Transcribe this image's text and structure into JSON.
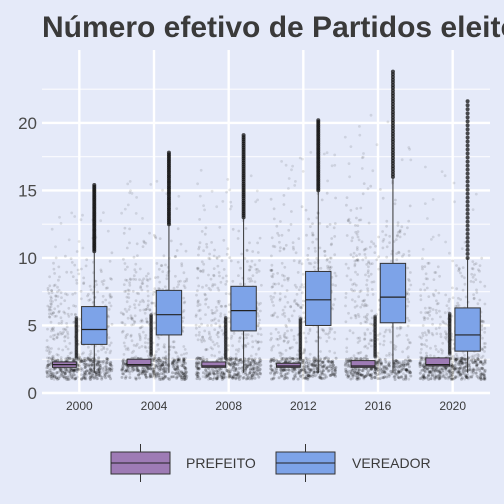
{
  "chart_data": {
    "type": "box",
    "title": "Número efetivo de Partidos eleitos",
    "xlabel": "",
    "ylabel": "",
    "categories": [
      "2000",
      "2004",
      "2008",
      "2012",
      "2016",
      "2020"
    ],
    "ylim": [
      0,
      25
    ],
    "yticks": [
      0,
      5,
      10,
      15,
      20
    ],
    "grid": true,
    "legend_position": "bottom",
    "series": [
      {
        "name": "PREFEITO",
        "color": "#9E7BB5",
        "boxes": [
          {
            "q1": 1.9,
            "median": 2.1,
            "q3": 2.3
          },
          {
            "q1": 2.0,
            "median": 2.1,
            "q3": 2.5
          },
          {
            "q1": 1.9,
            "median": 2.0,
            "q3": 2.3
          },
          {
            "q1": 1.9,
            "median": 2.0,
            "q3": 2.2
          },
          {
            "q1": 1.9,
            "median": 2.0,
            "q3": 2.4
          },
          {
            "q1": 2.0,
            "median": 2.1,
            "q3": 2.6
          }
        ]
      },
      {
        "name": "VEREADOR",
        "color": "#7DA3E8",
        "boxes": [
          {
            "whisker_low": 1.5,
            "q1": 3.6,
            "median": 4.7,
            "q3": 6.4,
            "whisker_high": 10.5,
            "outlier_max": 15.4
          },
          {
            "whisker_low": 1.5,
            "q1": 4.3,
            "median": 5.8,
            "q3": 7.6,
            "whisker_high": 12.5,
            "outlier_max": 17.8
          },
          {
            "whisker_low": 1.5,
            "q1": 4.6,
            "median": 6.1,
            "q3": 7.9,
            "whisker_high": 13.0,
            "outlier_max": 19.1
          },
          {
            "whisker_low": 1.5,
            "q1": 5.0,
            "median": 6.9,
            "q3": 9.0,
            "whisker_high": 15.0,
            "outlier_max": 20.2
          },
          {
            "whisker_low": 1.5,
            "q1": 5.2,
            "median": 7.1,
            "q3": 9.6,
            "whisker_high": 16.0,
            "outlier_max": 23.8
          },
          {
            "whisker_low": 1.5,
            "q1": 3.1,
            "median": 4.3,
            "q3": 6.3,
            "whisker_high": 10.0,
            "outlier_max": 21.6
          }
        ]
      }
    ]
  }
}
